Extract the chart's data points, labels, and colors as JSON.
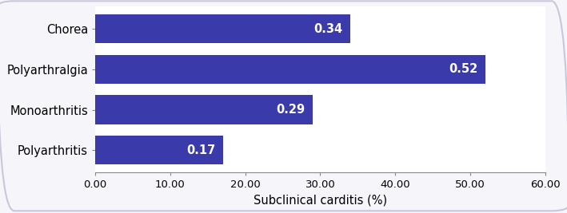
{
  "categories": [
    "Chorea",
    "Polyarthralgia",
    "Monoarthritis",
    "Polyarthritis"
  ],
  "values": [
    34,
    52,
    29,
    17
  ],
  "labels": [
    "0.34",
    "0.52",
    "0.29",
    "0.17"
  ],
  "bar_color": "#3a3aaa",
  "xlabel": "Subclinical carditis (%)",
  "xlim": [
    0,
    60
  ],
  "xticks": [
    0,
    10,
    20,
    30,
    40,
    50,
    60
  ],
  "xtick_labels": [
    "0.00",
    "10.00",
    "20.00",
    "30.00",
    "40.00",
    "50.00",
    "60.00"
  ],
  "background_color": "#ffffff",
  "fig_background_color": "#f5f5fa",
  "border_color": "#c8c8dc",
  "label_fontsize": 10.5,
  "xlabel_fontsize": 10.5,
  "tick_fontsize": 9.5,
  "bar_height": 0.72,
  "label_color": "#ffffff",
  "label_fontweight": "bold",
  "ytick_fontsize": 10.5
}
